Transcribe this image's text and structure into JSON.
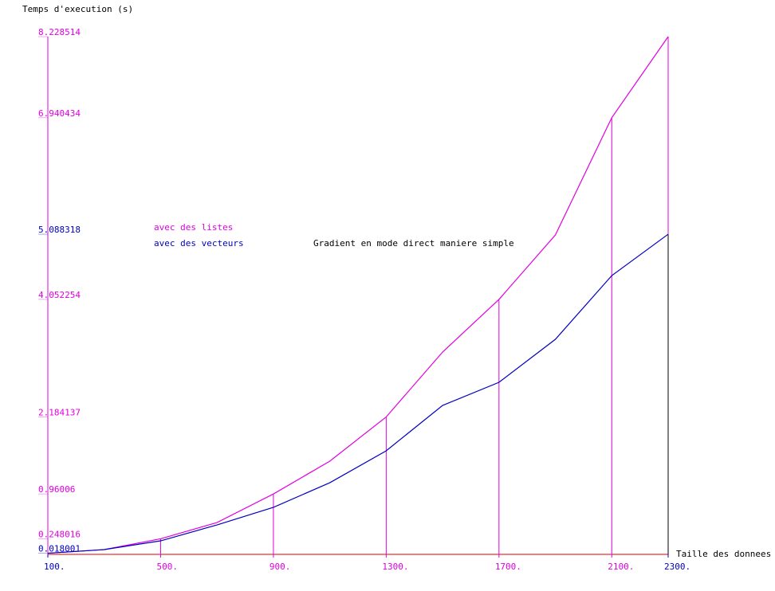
{
  "chart_data": {
    "type": "line",
    "title": "Gradient en mode direct maniere simple",
    "y_label": "Temps d'execution (s)",
    "x_label": "Taille des donnees",
    "x": [
      100,
      300,
      500,
      700,
      900,
      1100,
      1300,
      1500,
      1700,
      1900,
      2100,
      2300
    ],
    "series": [
      {
        "name": "avec des listes",
        "color": "#e000e0",
        "values": [
          0.018001,
          0.076,
          0.248016,
          0.506,
          0.96006,
          1.481,
          2.184137,
          3.215,
          4.052254,
          5.076,
          6.940434,
          8.228514
        ]
      },
      {
        "name": "avec des vecteurs",
        "color": "#0000c0",
        "values": [
          0.018,
          0.076,
          0.215,
          0.468,
          0.747,
          1.139,
          1.646,
          2.367,
          2.734,
          3.418,
          4.43,
          5.088318
        ]
      }
    ],
    "xlim": [
      100,
      2300
    ],
    "ylim": [
      0,
      8.228514
    ],
    "xticks": [
      {
        "value": 100,
        "label": "100."
      },
      {
        "value": 500,
        "label": "500."
      },
      {
        "value": 900,
        "label": "900."
      },
      {
        "value": 1300,
        "label": "1300."
      },
      {
        "value": 1700,
        "label": "1700."
      },
      {
        "value": 2100,
        "label": "2100."
      },
      {
        "value": 2300,
        "label": "2300."
      }
    ],
    "xtick_colors": [
      "#0000c0",
      "#e000e0",
      "#e000e0",
      "#e000e0",
      "#e000e0",
      "#e000e0",
      "#0000c0"
    ],
    "yticks": [
      0.018001,
      0.248016,
      0.96006,
      2.184137,
      4.052254,
      5.088318,
      6.940434,
      8.228514
    ],
    "ytick_colors": [
      "#0000c0",
      "#e000e0",
      "#e000e0",
      "#e000e0",
      "#e000e0",
      "#0000c0",
      "#e000e0",
      "#e000e0"
    ],
    "axis_color": "#e00000"
  }
}
